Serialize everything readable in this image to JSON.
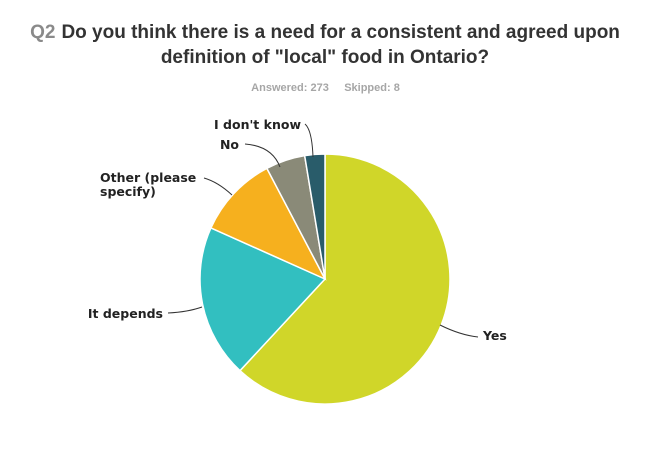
{
  "question": {
    "number": "Q2",
    "line1": "Do you think there is a need for a consistent and agreed upon",
    "line2": "definition of \"local\" food in Ontario?"
  },
  "answered_label": "Answered: 273",
  "skipped_label": "Skipped: 8",
  "chart_data": {
    "type": "pie",
    "start_angle_deg": 0,
    "direction": "clockwise",
    "slices": [
      {
        "label": "Yes",
        "value": 61.9,
        "color": "#d0d629"
      },
      {
        "label": "It depends",
        "value": 19.8,
        "color": "#32bfc0"
      },
      {
        "label": "Other (please specify)",
        "label_lines": [
          "Other (please",
          "specify)"
        ],
        "value": 10.6,
        "color": "#f6b01e"
      },
      {
        "label": "No",
        "value": 5.1,
        "color": "#8a8a78"
      },
      {
        "label": "I don't know",
        "value": 2.6,
        "color": "#295c6a"
      }
    ]
  }
}
